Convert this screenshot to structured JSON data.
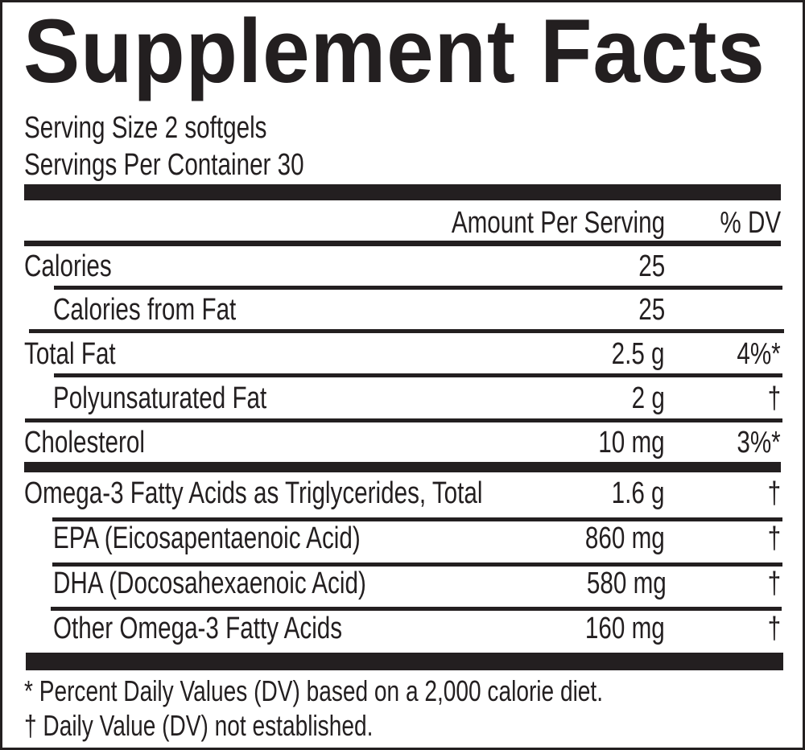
{
  "title": "Supplement Facts",
  "serving_size": "Serving Size 2 softgels",
  "servings_per_container": "Servings Per Container 30",
  "header": {
    "amount": "Amount Per Serving",
    "dv": "% DV"
  },
  "rows": [
    {
      "name": "Calories",
      "amount": "25",
      "dv": ""
    },
    {
      "name": "Calories from Fat",
      "amount": "25",
      "dv": ""
    },
    {
      "name": "Total Fat",
      "amount": "2.5 g",
      "dv": "4%*"
    },
    {
      "name": "Polyunsaturated Fat",
      "amount": "2 g",
      "dv": "†"
    },
    {
      "name": "Cholesterol",
      "amount": "10 mg",
      "dv": "3%*"
    },
    {
      "name": "Omega-3 Fatty Acids as Triglycerides, Total",
      "amount": "1.6 g",
      "dv": "†"
    },
    {
      "name": "EPA (Eicosapentaenoic Acid)",
      "amount": "860 mg",
      "dv": "†"
    },
    {
      "name": "DHA (Docosahexaenoic Acid)",
      "amount": "580 mg",
      "dv": "†"
    },
    {
      "name": "Other Omega-3 Fatty Acids",
      "amount": "160 mg",
      "dv": "†"
    }
  ],
  "footnotes": [
    "* Percent Daily Values (DV) based on a 2,000 calorie diet.",
    "† Daily Value (DV) not established."
  ],
  "colors": {
    "ink": "#231f20",
    "background": "#ffffff"
  }
}
